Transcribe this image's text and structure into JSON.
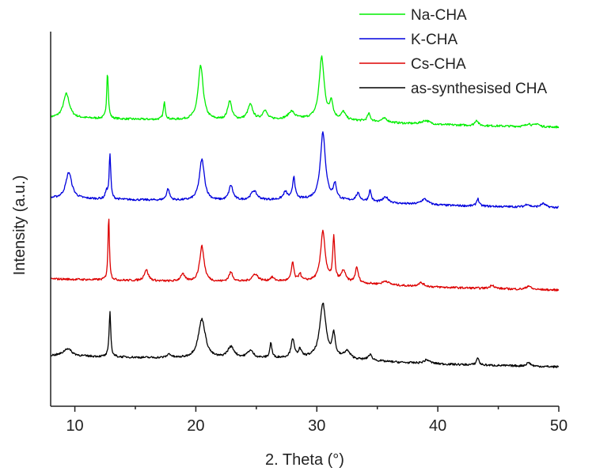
{
  "chart_data": {
    "type": "line",
    "title": "",
    "xlabel": "2. Theta (°)",
    "ylabel": "Intensity (a.u.)",
    "xlim": [
      8,
      50
    ],
    "ylim": [
      0,
      100
    ],
    "x_ticks": [
      10,
      20,
      30,
      40,
      50
    ],
    "x_tick_labels": [
      "10",
      "20",
      "30",
      "40",
      "50"
    ],
    "y_ticks_shown": false,
    "grid": false,
    "legend_position": "top-right",
    "series": [
      {
        "name": "Na-CHA",
        "color": "#00ee00",
        "baseline": 77,
        "end_baseline": 74.5,
        "peaks": [
          [
            9.3,
            6.5,
            0.3
          ],
          [
            12.7,
            12.5,
            0.08
          ],
          [
            17.4,
            4.5,
            0.1
          ],
          [
            20.4,
            14.5,
            0.25
          ],
          [
            22.8,
            5,
            0.2
          ],
          [
            24.5,
            4,
            0.25
          ],
          [
            25.7,
            2.5,
            0.2
          ],
          [
            27.9,
            2,
            0.3
          ],
          [
            30.4,
            16.5,
            0.25
          ],
          [
            31.2,
            4.5,
            0.15
          ],
          [
            32.2,
            2,
            0.2
          ],
          [
            34.3,
            2,
            0.15
          ],
          [
            35.6,
            1,
            0.3
          ],
          [
            39,
            1,
            0.4
          ],
          [
            43.2,
            1.5,
            0.15
          ],
          [
            47.5,
            0.8,
            0.2
          ],
          [
            48.2,
            0.8,
            0.2
          ]
        ]
      },
      {
        "name": "K-CHA",
        "color": "#0000dd",
        "baseline": 55.5,
        "end_baseline": 53,
        "peaks": [
          [
            9.5,
            7,
            0.3
          ],
          [
            12.6,
            2,
            0.1
          ],
          [
            12.9,
            12,
            0.08
          ],
          [
            17.7,
            3,
            0.15
          ],
          [
            20.5,
            11,
            0.25
          ],
          [
            22.9,
            4,
            0.2
          ],
          [
            24.8,
            2.5,
            0.3
          ],
          [
            27.4,
            2,
            0.2
          ],
          [
            28.1,
            6,
            0.12
          ],
          [
            30.5,
            18,
            0.25
          ],
          [
            31.5,
            4,
            0.15
          ],
          [
            33.4,
            2,
            0.2
          ],
          [
            34.4,
            3,
            0.12
          ],
          [
            35.7,
            1.5,
            0.3
          ],
          [
            38.9,
            1.5,
            0.35
          ],
          [
            43.3,
            2,
            0.12
          ],
          [
            47.4,
            0.8,
            0.2
          ],
          [
            48.7,
            1,
            0.25
          ]
        ]
      },
      {
        "name": "Cs-CHA",
        "color": "#dd0000",
        "baseline": 34,
        "end_baseline": 31,
        "peaks": [
          [
            12.8,
            17,
            0.07
          ],
          [
            15.9,
            3,
            0.2
          ],
          [
            18.9,
            2,
            0.2
          ],
          [
            20.5,
            9.5,
            0.22
          ],
          [
            22.9,
            2.5,
            0.2
          ],
          [
            24.9,
            2,
            0.3
          ],
          [
            26.3,
            1,
            0.2
          ],
          [
            28,
            5,
            0.12
          ],
          [
            28.6,
            2,
            0.12
          ],
          [
            30.5,
            13.5,
            0.22
          ],
          [
            31.4,
            11.5,
            0.1
          ],
          [
            32.2,
            3,
            0.2
          ],
          [
            33.3,
            4,
            0.15
          ],
          [
            35.7,
            1,
            0.3
          ],
          [
            38.6,
            1,
            0.3
          ],
          [
            44.5,
            1,
            0.2
          ],
          [
            47.5,
            1,
            0.2
          ]
        ]
      },
      {
        "name": "as-synthesised CHA",
        "color": "#000000",
        "baseline": 13.5,
        "end_baseline": 10.5,
        "peaks": [
          [
            9.4,
            2,
            0.4
          ],
          [
            12.9,
            12,
            0.08
          ],
          [
            17.8,
            1,
            0.2
          ],
          [
            20.5,
            10.5,
            0.35
          ],
          [
            22.9,
            3,
            0.35
          ],
          [
            24.5,
            2,
            0.3
          ],
          [
            26.2,
            4,
            0.1
          ],
          [
            28,
            5,
            0.15
          ],
          [
            28.6,
            2,
            0.15
          ],
          [
            30.5,
            14.5,
            0.3
          ],
          [
            31.4,
            6,
            0.15
          ],
          [
            32.5,
            2,
            0.3
          ],
          [
            34.4,
            1.5,
            0.2
          ],
          [
            39.1,
            1,
            0.3
          ],
          [
            43.3,
            2,
            0.12
          ],
          [
            47.5,
            1,
            0.2
          ]
        ]
      }
    ]
  }
}
